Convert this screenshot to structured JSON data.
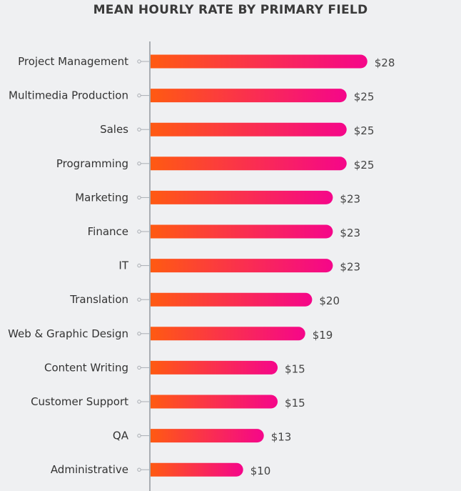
{
  "chart_data": {
    "type": "bar",
    "orientation": "horizontal",
    "title": "MEAN HOURLY RATE BY PRIMARY FIELD",
    "categories": [
      "Project Management",
      "Multimedia Production",
      "Sales",
      "Programming",
      "Marketing",
      "Finance",
      "IT",
      "Translation",
      "Web & Graphic Design",
      "Content Writing",
      "Customer Support",
      "QA",
      "Administrative"
    ],
    "values": [
      28,
      25,
      25,
      25,
      23,
      23,
      23,
      20,
      19,
      15,
      15,
      13,
      10
    ],
    "value_labels": [
      "$28",
      "$25",
      "$25",
      "$25",
      "$23",
      "$23",
      "$23",
      "$20",
      "$19",
      "$15",
      "$15",
      "$13",
      "$10"
    ],
    "xlabel": "",
    "ylabel": "",
    "grid": false,
    "colors": {
      "bar_start": "#ff5a12",
      "bar_end": "#f5068a",
      "axis": "#a9adb3",
      "text": "#333333"
    }
  }
}
